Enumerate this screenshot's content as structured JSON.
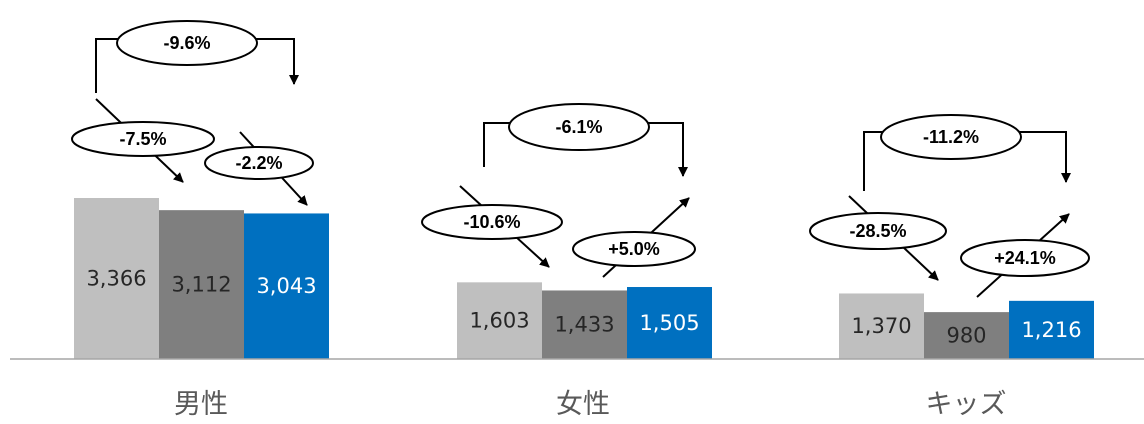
{
  "chart_data": {
    "type": "bar",
    "categories": [
      "男性",
      "女性",
      "キッズ"
    ],
    "series": [
      {
        "values": [
          3366,
          1603,
          1370
        ],
        "color": "#bfbfbf"
      },
      {
        "values": [
          3112,
          1433,
          980
        ],
        "color": "#7f7f7f"
      },
      {
        "values": [
          3043,
          1505,
          1216
        ],
        "color": "#0070c0"
      }
    ],
    "value_labels": [
      [
        "3,366",
        "3,112",
        "3,043"
      ],
      [
        "1,603",
        "1,433",
        "1,505"
      ],
      [
        "1,370",
        "980",
        "1,216"
      ]
    ],
    "change_labels": {
      "step1": [
        "-7.5%",
        "-10.6%",
        "-28.5%"
      ],
      "step2": [
        "-2.2%",
        "+5.0%",
        "+24.1%"
      ],
      "overall": [
        "-9.6%",
        "-6.1%",
        "-11.2%"
      ]
    },
    "ylim": [
      0,
      3500
    ],
    "grid": false,
    "legend": "none",
    "colors": {
      "bar_light": "#bfbfbf",
      "bar_dark": "#7f7f7f",
      "bar_blue": "#0070c0",
      "axis": "#a6a6a6"
    }
  }
}
